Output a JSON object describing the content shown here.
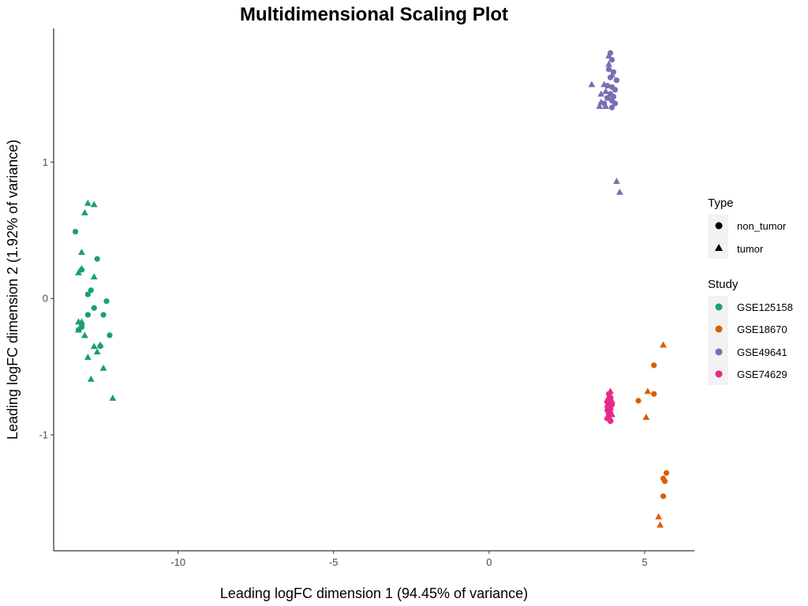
{
  "chart_data": {
    "type": "scatter",
    "title": "Multidimensional Scaling Plot",
    "xlabel": "Leading logFC dimension 1 (94.45% of variance)",
    "ylabel": "Leading logFC dimension 2 (1.92% of variance)",
    "xlim": [
      -14.0,
      6.6
    ],
    "ylim": [
      -1.85,
      1.98
    ],
    "x_ticks": [
      -10,
      -5,
      0,
      5
    ],
    "x_tick_labels": [
      "-10",
      "-5",
      "0",
      "5"
    ],
    "y_ticks": [
      -1,
      0,
      1
    ],
    "y_tick_labels": [
      "-1",
      "0",
      "1"
    ],
    "grid": false,
    "legend_position": "right",
    "shape_legend": {
      "title": "Type",
      "entries": [
        {
          "label": "non_tumor",
          "shape": "circle"
        },
        {
          "label": "tumor",
          "shape": "triangle"
        }
      ]
    },
    "color_legend": {
      "title": "Study",
      "entries": [
        {
          "label": "GSE125158",
          "color": "#1b9e77"
        },
        {
          "label": "GSE18670",
          "color": "#d95f02"
        },
        {
          "label": "GSE49641",
          "color": "#7570b3"
        },
        {
          "label": "GSE74629",
          "color": "#e7298a"
        }
      ]
    },
    "series": [
      {
        "study": "GSE125158",
        "type": "non_tumor",
        "color": "#1b9e77",
        "shape": "circle",
        "points": [
          [
            -13.3,
            0.49
          ],
          [
            -13.1,
            0.21
          ],
          [
            -12.6,
            0.29
          ],
          [
            -12.9,
            0.03
          ],
          [
            -12.8,
            0.06
          ],
          [
            -12.7,
            -0.07
          ],
          [
            -12.3,
            -0.02
          ],
          [
            -12.4,
            -0.12
          ],
          [
            -12.9,
            -0.12
          ],
          [
            -13.1,
            -0.19
          ],
          [
            -13.1,
            -0.21
          ],
          [
            -12.2,
            -0.27
          ],
          [
            -12.5,
            -0.35
          ],
          [
            -13.2,
            -0.23
          ]
        ]
      },
      {
        "study": "GSE125158",
        "type": "tumor",
        "color": "#1b9e77",
        "shape": "triangle",
        "points": [
          [
            -12.9,
            0.7
          ],
          [
            -12.7,
            0.69
          ],
          [
            -13.0,
            0.63
          ],
          [
            -13.1,
            0.34
          ],
          [
            -13.1,
            0.22
          ],
          [
            -13.2,
            0.19
          ],
          [
            -12.7,
            0.16
          ],
          [
            -13.1,
            -0.17
          ],
          [
            -13.2,
            -0.17
          ],
          [
            -13.0,
            -0.27
          ],
          [
            -12.7,
            -0.35
          ],
          [
            -12.5,
            -0.34
          ],
          [
            -12.6,
            -0.39
          ],
          [
            -13.2,
            -0.23
          ],
          [
            -12.9,
            -0.43
          ],
          [
            -12.4,
            -0.51
          ],
          [
            -12.8,
            -0.59
          ],
          [
            -12.1,
            -0.73
          ]
        ]
      },
      {
        "study": "GSE18670",
        "type": "non_tumor",
        "color": "#d95f02",
        "shape": "circle",
        "points": [
          [
            5.3,
            -0.49
          ],
          [
            4.8,
            -0.75
          ],
          [
            5.3,
            -0.7
          ],
          [
            5.7,
            -1.28
          ],
          [
            5.65,
            -1.34
          ],
          [
            5.6,
            -1.32
          ],
          [
            5.6,
            -1.45
          ]
        ]
      },
      {
        "study": "GSE18670",
        "type": "tumor",
        "color": "#d95f02",
        "shape": "triangle",
        "points": [
          [
            5.6,
            -0.34
          ],
          [
            5.1,
            -0.68
          ],
          [
            5.05,
            -0.87
          ],
          [
            5.45,
            -1.6
          ],
          [
            5.5,
            -1.66
          ]
        ]
      },
      {
        "study": "GSE49641",
        "type": "non_tumor",
        "color": "#7570b3",
        "shape": "circle",
        "points": [
          [
            3.9,
            1.8
          ],
          [
            3.95,
            1.75
          ],
          [
            3.85,
            1.68
          ],
          [
            4.0,
            1.66
          ],
          [
            3.9,
            1.62
          ],
          [
            4.1,
            1.6
          ],
          [
            3.8,
            1.56
          ],
          [
            3.95,
            1.55
          ],
          [
            4.05,
            1.53
          ],
          [
            3.9,
            1.5
          ],
          [
            4.0,
            1.48
          ],
          [
            3.8,
            1.47
          ],
          [
            3.95,
            1.45
          ],
          [
            4.05,
            1.43
          ],
          [
            3.7,
            1.43
          ],
          [
            3.95,
            1.4
          ]
        ]
      },
      {
        "study": "GSE49641",
        "type": "tumor",
        "color": "#7570b3",
        "shape": "triangle",
        "points": [
          [
            3.85,
            1.78
          ],
          [
            3.85,
            1.72
          ],
          [
            3.95,
            1.64
          ],
          [
            3.7,
            1.57
          ],
          [
            3.3,
            1.57
          ],
          [
            3.75,
            1.52
          ],
          [
            3.6,
            1.5
          ],
          [
            3.85,
            1.47
          ],
          [
            3.6,
            1.44
          ],
          [
            3.75,
            1.41
          ],
          [
            3.55,
            1.41
          ],
          [
            4.1,
            0.86
          ],
          [
            4.2,
            0.78
          ]
        ]
      },
      {
        "study": "GSE74629",
        "type": "non_tumor",
        "color": "#e7298a",
        "shape": "circle",
        "points": [
          [
            3.85,
            -0.7
          ],
          [
            3.9,
            -0.73
          ],
          [
            3.8,
            -0.76
          ],
          [
            3.95,
            -0.78
          ],
          [
            3.85,
            -0.8
          ],
          [
            3.8,
            -0.82
          ],
          [
            3.9,
            -0.84
          ],
          [
            3.85,
            -0.86
          ],
          [
            3.8,
            -0.88
          ],
          [
            3.9,
            -0.9
          ],
          [
            3.85,
            -0.75
          ],
          [
            3.9,
            -0.81
          ]
        ]
      },
      {
        "study": "GSE74629",
        "type": "tumor",
        "color": "#e7298a",
        "shape": "triangle",
        "points": [
          [
            3.9,
            -0.68
          ],
          [
            3.85,
            -0.72
          ],
          [
            3.95,
            -0.75
          ],
          [
            3.8,
            -0.78
          ],
          [
            3.9,
            -0.8
          ],
          [
            3.85,
            -0.83
          ],
          [
            3.95,
            -0.85
          ],
          [
            3.8,
            -0.87
          ],
          [
            3.9,
            -0.88
          ],
          [
            3.85,
            -0.77
          ],
          [
            3.9,
            -0.71
          ],
          [
            3.8,
            -0.74
          ],
          [
            3.9,
            -0.83
          ]
        ]
      }
    ]
  }
}
